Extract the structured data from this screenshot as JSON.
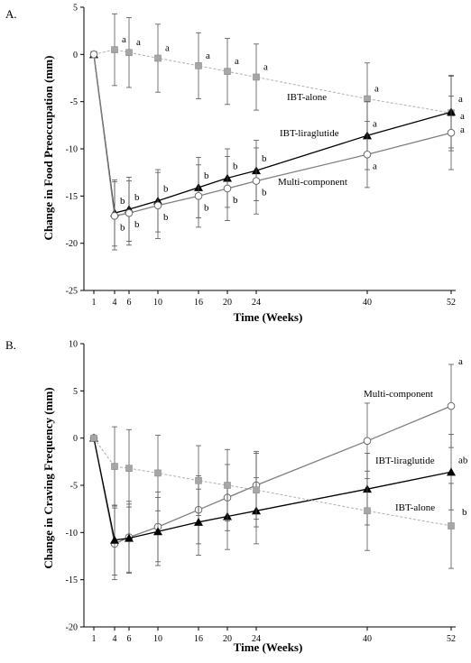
{
  "chart_data": [
    {
      "panel_label": "A.",
      "type": "line",
      "xlabel": "Time (Weeks)",
      "ylabel": "Change in Food Preoccupation (mm)",
      "ylim": [
        -25,
        5
      ],
      "yticks": [
        5,
        0,
        -5,
        -10,
        -15,
        -20,
        -25
      ],
      "xticks": [
        1,
        4,
        6,
        10,
        16,
        20,
        24,
        40,
        52
      ],
      "grid": false,
      "series": [
        {
          "name": "IBT-alone",
          "marker": "square",
          "color": "#999999",
          "line_style": "dashed",
          "x": [
            1,
            4,
            6,
            10,
            16,
            20,
            24,
            40,
            52
          ],
          "values": [
            0,
            0.5,
            0.2,
            -0.4,
            -1.2,
            -1.8,
            -2.4,
            -4.7,
            -6.2
          ],
          "errors": [
            0,
            3.8,
            3.7,
            3.6,
            3.5,
            3.5,
            3.5,
            3.8,
            4.0
          ],
          "sig": [
            "",
            "a",
            "a",
            "a",
            "a",
            "a",
            "a",
            "a",
            "a"
          ]
        },
        {
          "name": "IBT-liraglutide",
          "marker": "triangle",
          "color": "#000000",
          "line_style": "solid",
          "x": [
            1,
            4,
            6,
            10,
            16,
            20,
            24,
            40,
            52
          ],
          "values": [
            0,
            -16.8,
            -16.4,
            -15.5,
            -14.1,
            -13.1,
            -12.3,
            -8.6,
            -6.1
          ],
          "errors": [
            0,
            3.5,
            3.4,
            3.3,
            3.2,
            3.1,
            3.2,
            3.6,
            3.8
          ],
          "sig": [
            "",
            "b",
            "b",
            "b",
            "b",
            "b",
            "b",
            "a",
            "a"
          ]
        },
        {
          "name": "Multi-component",
          "marker": "circle",
          "color": "#7f7f7f",
          "line_style": "solid",
          "x": [
            1,
            4,
            6,
            10,
            16,
            20,
            24,
            40,
            52
          ],
          "values": [
            0,
            -17.1,
            -16.8,
            -16.0,
            -15.0,
            -14.2,
            -13.4,
            -10.6,
            -8.3
          ],
          "errors": [
            0,
            3.6,
            3.4,
            3.5,
            3.3,
            3.4,
            3.5,
            3.5,
            3.9
          ],
          "sig": [
            "",
            "b",
            "b",
            "b",
            "b",
            "b",
            "b",
            "a",
            "a"
          ]
        }
      ]
    },
    {
      "panel_label": "B.",
      "type": "line",
      "xlabel": "Time (Weeks)",
      "ylabel": "Change in Craving Frequency (mm)",
      "ylim": [
        -20,
        10
      ],
      "yticks": [
        10,
        5,
        0,
        -5,
        -10,
        -15,
        -20
      ],
      "xticks": [
        1,
        4,
        6,
        10,
        16,
        20,
        24,
        40,
        52
      ],
      "grid": false,
      "series": [
        {
          "name": "Multi-component",
          "marker": "circle",
          "color": "#7f7f7f",
          "line_style": "solid",
          "x": [
            1,
            4,
            6,
            10,
            16,
            20,
            24,
            40,
            52
          ],
          "values": [
            0,
            -11.2,
            -10.5,
            -9.4,
            -7.6,
            -6.3,
            -5.0,
            -0.3,
            3.4
          ],
          "errors": [
            0,
            3.8,
            3.8,
            3.7,
            3.6,
            3.5,
            3.6,
            4.0,
            4.4
          ],
          "sig": [
            "",
            "",
            "",
            "",
            "",
            "",
            "",
            "",
            "a"
          ]
        },
        {
          "name": "IBT-liraglutide",
          "marker": "triangle",
          "color": "#000000",
          "line_style": "solid",
          "x": [
            1,
            4,
            6,
            10,
            16,
            20,
            24,
            40,
            52
          ],
          "values": [
            0,
            -10.8,
            -10.6,
            -9.9,
            -8.9,
            -8.3,
            -7.7,
            -5.4,
            -3.6
          ],
          "errors": [
            0,
            3.7,
            3.6,
            3.6,
            3.5,
            3.5,
            3.5,
            3.8,
            4.0
          ],
          "sig": [
            "",
            "",
            "",
            "",
            "",
            "",
            "",
            "",
            "ab"
          ]
        },
        {
          "name": "IBT-alone",
          "marker": "square",
          "color": "#999999",
          "line_style": "dashed",
          "x": [
            1,
            4,
            6,
            10,
            16,
            20,
            24,
            40,
            52
          ],
          "values": [
            0,
            -3.0,
            -3.2,
            -3.7,
            -4.5,
            -5.0,
            -5.5,
            -7.7,
            -9.3
          ],
          "errors": [
            0,
            4.2,
            4.1,
            4.0,
            3.7,
            3.8,
            3.9,
            4.2,
            4.5
          ],
          "sig": [
            "",
            "",
            "",
            "",
            "",
            "",
            "",
            "",
            "b"
          ]
        }
      ]
    }
  ]
}
